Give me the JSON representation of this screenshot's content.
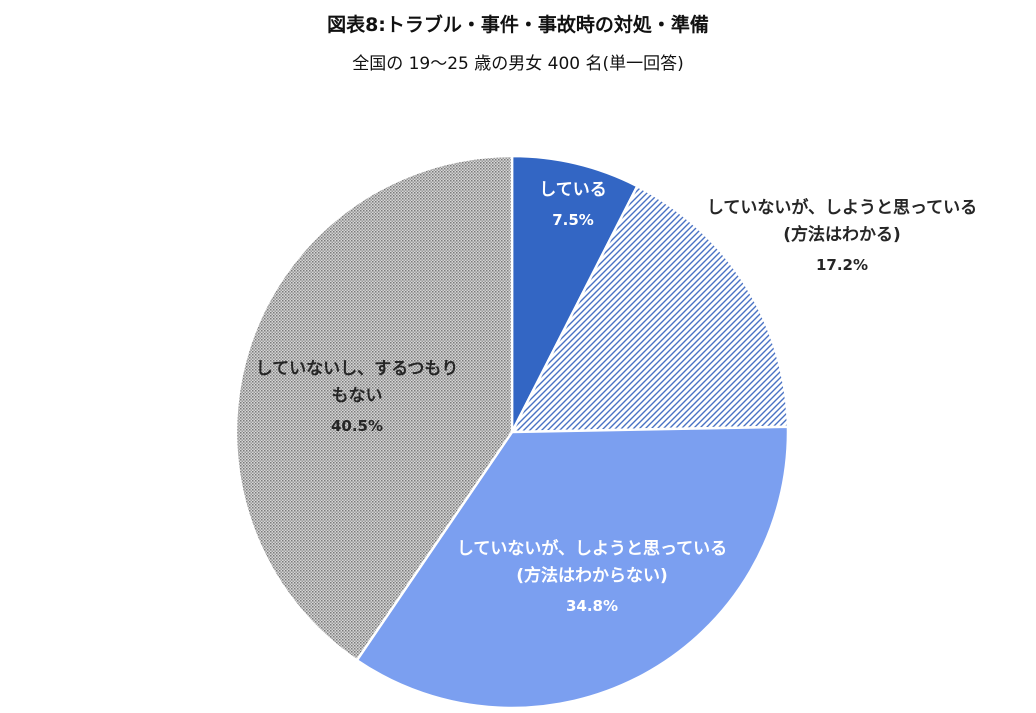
{
  "chart_data": {
    "type": "pie",
    "title": "図表8:トラブル・事件・事故時の対処・準備",
    "subtitle": "全国の 19〜25 歳の男女 400 名(単一回答)",
    "slices": [
      {
        "lines": [
          "している"
        ],
        "value": 7.5,
        "value_label": "7.5%",
        "color": "#3366c4",
        "pattern": "solid"
      },
      {
        "lines": [
          "していないが、しようと思っている",
          "(方法はわかる)"
        ],
        "value": 17.2,
        "value_label": "17.2%",
        "color": "#4a72c4",
        "pattern": "diagonal"
      },
      {
        "lines": [
          "していないが、しようと思っている",
          "(方法はわからない)"
        ],
        "value": 34.8,
        "value_label": "34.8%",
        "color": "#7b9ff0",
        "pattern": "solid"
      },
      {
        "lines": [
          "していないし、するつもり",
          "もない"
        ],
        "value": 40.5,
        "value_label": "40.5%",
        "color": "#8c8c8c",
        "pattern": "dots"
      }
    ]
  }
}
